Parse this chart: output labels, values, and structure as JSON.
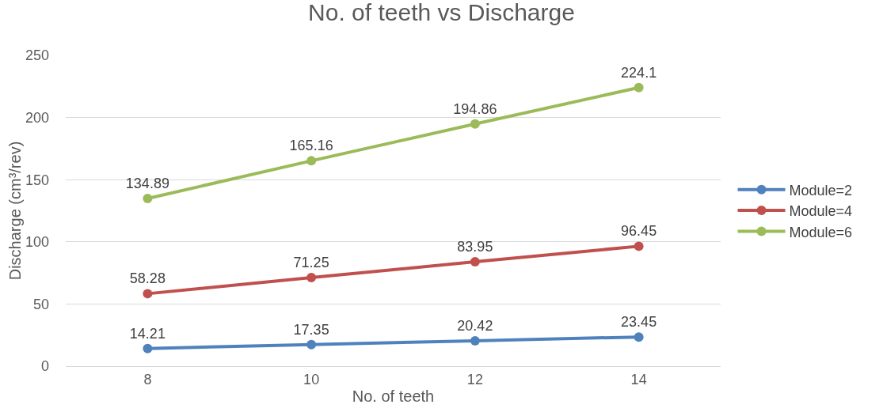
{
  "chart_data": {
    "type": "line",
    "title": "No. of teeth vs Discharge",
    "xlabel": "No. of teeth",
    "ylabel": "Discharge (cm³/rev)",
    "categories": [
      "8",
      "10",
      "12",
      "14"
    ],
    "series": [
      {
        "name": "Module=2",
        "color": "#4f81bd",
        "values": [
          14.21,
          17.35,
          20.42,
          23.45
        ]
      },
      {
        "name": "Module=4",
        "color": "#c0504d",
        "values": [
          58.28,
          71.25,
          83.95,
          96.45
        ]
      },
      {
        "name": "Module=6",
        "color": "#9bbb59",
        "values": [
          134.89,
          165.16,
          194.86,
          224.1
        ]
      }
    ],
    "ylim": [
      0,
      250
    ],
    "yticks": [
      0,
      50,
      100,
      150,
      200,
      250
    ],
    "grid": "y",
    "legend": "right",
    "marker": "circle",
    "line_style": "solid",
    "data_labels": true
  }
}
